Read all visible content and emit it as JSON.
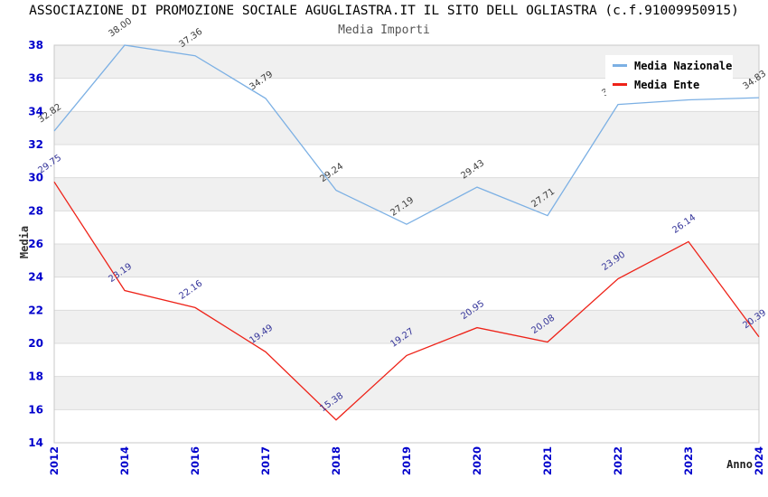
{
  "chart_data": {
    "type": "line",
    "title": "ASSOCIAZIONE DI PROMOZIONE SOCIALE AGUGLIASTRA.IT IL SITO DELL OGLIASTRA (c.f.91009950915)",
    "subtitle": "Media Importi",
    "xlabel": "Anno",
    "ylabel": "Media",
    "categories": [
      "2012",
      "2014",
      "2016",
      "2017",
      "2018",
      "2019",
      "2020",
      "2021",
      "2022",
      "2023",
      "2024"
    ],
    "ylim": [
      14,
      38
    ],
    "ytick_step": 2,
    "grid": "horizontal-bands-alternating",
    "legend_position": "top-right",
    "colors": {
      "tick_label": "#0000CC",
      "band_gray": "#F0F0F0",
      "gridline": "#DCDCDC",
      "plot_border": "#C8C8C8",
      "title": "#000000",
      "subtitle": "#555555"
    },
    "series": [
      {
        "name": "Media Nazionale",
        "color": "#7CB0E4",
        "label_color": "#3A3A3A",
        "values": [
          32.82,
          38.0,
          37.36,
          34.79,
          29.24,
          27.19,
          29.43,
          27.71,
          34.42,
          34.7,
          34.83
        ]
      },
      {
        "name": "Media Ente",
        "color": "#EE2218",
        "label_color": "#333399",
        "values": [
          29.75,
          23.19,
          22.16,
          19.49,
          15.38,
          19.27,
          20.95,
          20.08,
          23.9,
          26.14,
          20.39
        ]
      }
    ]
  }
}
